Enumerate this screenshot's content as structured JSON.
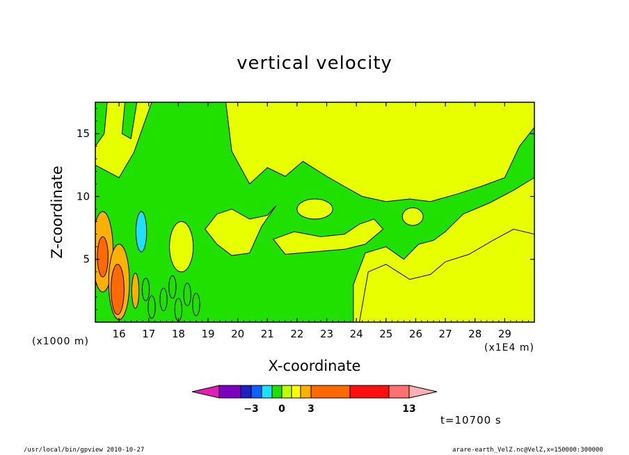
{
  "chart_data": {
    "type": "heatmap",
    "title": "vertical velocity",
    "xlabel": "X-coordinate",
    "ylabel": "Z-coordinate",
    "x_unit_label": "(x1E4 m)",
    "y_unit_label": "(x1000 m)",
    "xlim": [
      15.2,
      30.0
    ],
    "ylim": [
      0,
      17.5
    ],
    "x_ticks": [
      16,
      17,
      18,
      19,
      20,
      21,
      22,
      23,
      24,
      25,
      26,
      27,
      28,
      29
    ],
    "y_ticks": [
      5,
      10,
      15
    ],
    "time_label": "t=10700 s",
    "contour_levels": [
      -7,
      -5,
      -3,
      -2,
      -1,
      0,
      1,
      2,
      3,
      6,
      10,
      13
    ],
    "colorbar_tick_labels": [
      {
        "value": -3,
        "label": "−3"
      },
      {
        "value": 0,
        "label": "0"
      },
      {
        "value": 3,
        "label": "3"
      },
      {
        "value": 13,
        "label": "13"
      }
    ],
    "colorbar_colors": [
      "#e020b0",
      "#8000c0",
      "#2020c0",
      "#1060ff",
      "#20e0ff",
      "#20e000",
      "#c0ff00",
      "#ffff00",
      "#ffb000",
      "#ff6a00",
      "#ff1010",
      "#ff7070",
      "#ffb0b0"
    ],
    "field_colors": {
      "weak_negative": "#20e000",
      "weak_positive": "#e8ff00",
      "moderate_positive": "#ffb000",
      "strong_positive": "#ff6a00",
      "negative_core": "#20e0ff"
    }
  },
  "footer": {
    "left": "/usr/local/bin/gpview   2010-10-27",
    "right": "arare-earth_VelZ.nc@VelZ,x=150000:300000"
  }
}
